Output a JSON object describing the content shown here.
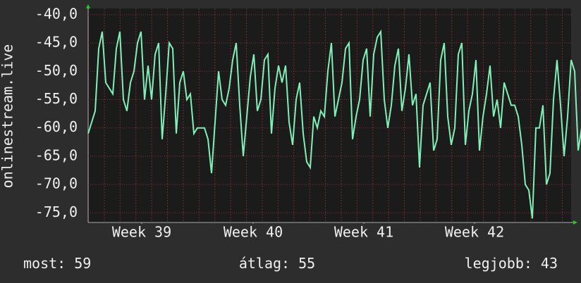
{
  "chart_data": {
    "type": "line",
    "y_label": "onlinestream.live",
    "values": [
      -61,
      -59,
      -57,
      -46,
      -43,
      -52,
      -53,
      -54,
      -46,
      -43,
      -55,
      -57,
      -52,
      -50,
      -45,
      -43,
      -55,
      -49,
      -55,
      -47,
      -45,
      -62,
      -54,
      -45,
      -46,
      -61,
      -52,
      -50,
      -55,
      -54,
      -61,
      -60,
      -60,
      -60,
      -62,
      -68,
      -59,
      -50,
      -55,
      -56,
      -53,
      -48,
      -45,
      -56,
      -65,
      -58,
      -51,
      -47,
      -57,
      -55,
      -48,
      -47,
      -61,
      -53,
      -49,
      -52,
      -49,
      -59,
      -63,
      -55,
      -52,
      -61,
      -66,
      -67,
      -58,
      -60,
      -57,
      -58,
      -50,
      -45,
      -58,
      -55,
      -52,
      -46,
      -45,
      -62,
      -58,
      -55,
      -48,
      -46,
      -58,
      -47,
      -44,
      -43,
      -55,
      -60,
      -56,
      -49,
      -46,
      -57,
      -53,
      -47,
      -56,
      -54,
      -67,
      -56,
      -54,
      -52,
      -64,
      -62,
      -48,
      -45,
      -58,
      -63,
      -60,
      -47,
      -45,
      -63,
      -57,
      -54,
      -48,
      -64,
      -58,
      -54,
      -49,
      -58,
      -55,
      -60,
      -52,
      -54,
      -56,
      -56,
      -58,
      -63,
      -70,
      -71,
      -76,
      -60,
      -60,
      -56,
      -70,
      -68,
      -55,
      -48,
      -56,
      -65,
      -58,
      -48,
      -50,
      -64,
      -60,
      -59
    ],
    "color": "#80f0b8",
    "xlim": [
      0,
      137
    ],
    "xticks": [
      {
        "value": 15.2,
        "label": "Week 39"
      },
      {
        "value": 46.8,
        "label": "Week 40"
      },
      {
        "value": 78.2,
        "label": "Week 41"
      },
      {
        "value": 109.6,
        "label": "Week 42"
      }
    ],
    "ylim": [
      -76.7,
      -38.9
    ],
    "yticks": [
      {
        "value": -40,
        "label": "-40,0"
      },
      {
        "value": -45,
        "label": "-45,0"
      },
      {
        "value": -50,
        "label": "-50,0"
      },
      {
        "value": -55,
        "label": "-55,0"
      },
      {
        "value": -60,
        "label": "-60,0"
      },
      {
        "value": -65,
        "label": "-65,0"
      },
      {
        "value": -70,
        "label": "-70,0"
      },
      {
        "value": -75,
        "label": "-75,0"
      }
    ],
    "grid": true,
    "stats": [
      {
        "label": "most:",
        "value": 59
      },
      {
        "label": "átlag:",
        "value": 55
      },
      {
        "label": "legjobb:",
        "value": 43
      }
    ]
  }
}
